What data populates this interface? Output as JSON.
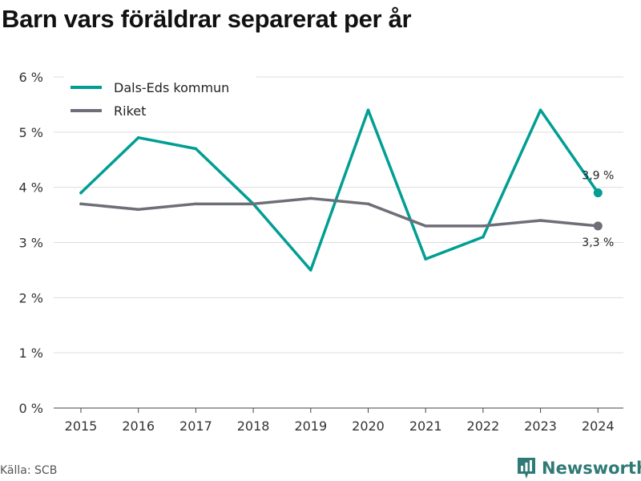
{
  "title": "Barn vars föräldrar separerat per år",
  "source": "Källa: SCB",
  "brand": {
    "name": "Newsworthy"
  },
  "colors": {
    "primary": "#009e93",
    "secondary": "#6e6e78",
    "brand": "#2f7a77"
  },
  "chart_data": {
    "type": "line",
    "title": "Barn vars föräldrar separerat per år",
    "xlabel": "",
    "ylabel": "",
    "categories": [
      "2015",
      "2016",
      "2017",
      "2018",
      "2019",
      "2020",
      "2021",
      "2022",
      "2023",
      "2024"
    ],
    "series": [
      {
        "name": "Dals-Eds kommun",
        "color": "#009e93",
        "values": [
          3.9,
          4.9,
          4.7,
          3.7,
          2.5,
          5.4,
          2.7,
          3.1,
          5.4,
          3.9
        ]
      },
      {
        "name": "Riket",
        "color": "#6e6e78",
        "values": [
          3.7,
          3.6,
          3.7,
          3.7,
          3.8,
          3.7,
          3.3,
          3.3,
          3.4,
          3.3
        ]
      }
    ],
    "y_ticks": [
      0,
      1,
      2,
      3,
      4,
      5,
      6
    ],
    "y_tick_labels": [
      "0 %",
      "1 %",
      "2 %",
      "3 %",
      "4 %",
      "5 %",
      "6 %"
    ],
    "ylim": [
      0,
      6
    ],
    "grid": true,
    "legend_position": "top-left",
    "end_labels": [
      "3,9 %",
      "3,3 %"
    ]
  }
}
